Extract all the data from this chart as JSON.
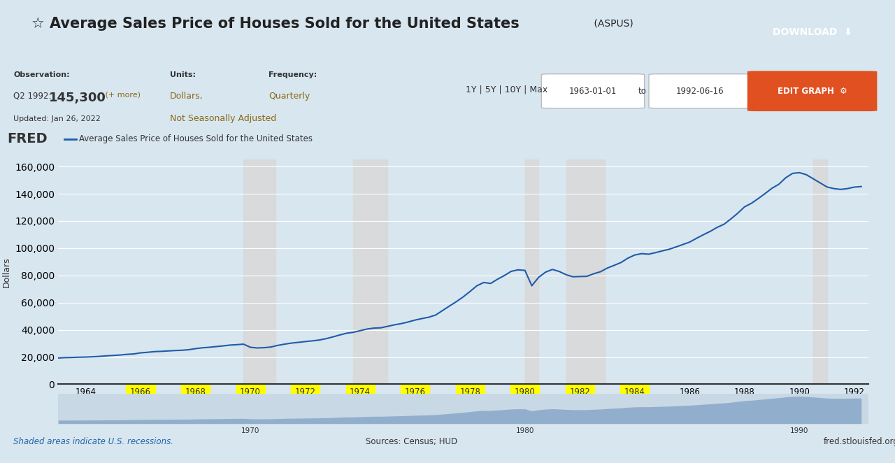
{
  "title": "Average Sales Price of Houses Sold for the United States",
  "title_suffix": "(ASPUS)",
  "line_label": "Average Sales Price of Houses Sold for the United States",
  "ylabel": "Dollars",
  "xlabel": "",
  "line_color": "#1f5ca8",
  "line_width": 1.5,
  "background_color": "#d8e6f0",
  "chart_bg_color": "#d8e6f0",
  "header_bg_color": "#eeeedd",
  "recession_color": "#d8d8d8",
  "recession_alpha": 0.85,
  "ylim": [
    0,
    165000
  ],
  "yticks": [
    0,
    20000,
    40000,
    60000,
    80000,
    100000,
    120000,
    140000,
    160000
  ],
  "xlim_start": 1963.0,
  "xlim_end": 1992.5,
  "xticks": [
    1964,
    1966,
    1968,
    1970,
    1972,
    1974,
    1976,
    1978,
    1980,
    1982,
    1984,
    1986,
    1988,
    1990,
    1992
  ],
  "highlighted_xticks": [
    1966,
    1968,
    1970,
    1972,
    1974,
    1976,
    1978,
    1980,
    1982,
    1984
  ],
  "highlight_color": "#ffff00",
  "recession_bands": [
    [
      1969.75,
      1970.916
    ],
    [
      1973.75,
      1975.0
    ],
    [
      1980.0,
      1980.5
    ],
    [
      1981.5,
      1982.916
    ],
    [
      1990.5,
      1991.0
    ]
  ],
  "obs_label": "Observation:",
  "obs_value": "Q2 1992: 145,300",
  "obs_more": "(+ more)",
  "obs_updated": "Updated: Jan 26, 2022",
  "units_label": "Units:",
  "units_value": "Dollars,",
  "units_adj": "Not Seasonally Adjusted",
  "freq_label": "Frequency:",
  "freq_value": "Quarterly",
  "date_from": "1963-01-01",
  "date_to": "1992-06-16",
  "source_text": "Sources: Census; HUD",
  "fred_url": "fred.stlouisfed.org",
  "shaded_note": "Shaded areas indicate U.S. recessions.",
  "data_x": [
    1963.0,
    1963.25,
    1963.5,
    1963.75,
    1964.0,
    1964.25,
    1964.5,
    1964.75,
    1965.0,
    1965.25,
    1965.5,
    1965.75,
    1966.0,
    1966.25,
    1966.5,
    1966.75,
    1967.0,
    1967.25,
    1967.5,
    1967.75,
    1968.0,
    1968.25,
    1968.5,
    1968.75,
    1969.0,
    1969.25,
    1969.5,
    1969.75,
    1970.0,
    1970.25,
    1970.5,
    1970.75,
    1971.0,
    1971.25,
    1971.5,
    1971.75,
    1972.0,
    1972.25,
    1972.5,
    1972.75,
    1973.0,
    1973.25,
    1973.5,
    1973.75,
    1974.0,
    1974.25,
    1974.5,
    1974.75,
    1975.0,
    1975.25,
    1975.5,
    1975.75,
    1976.0,
    1976.25,
    1976.5,
    1976.75,
    1977.0,
    1977.25,
    1977.5,
    1977.75,
    1978.0,
    1978.25,
    1978.5,
    1978.75,
    1979.0,
    1979.25,
    1979.5,
    1979.75,
    1980.0,
    1980.25,
    1980.5,
    1980.75,
    1981.0,
    1981.25,
    1981.5,
    1981.75,
    1982.0,
    1982.25,
    1982.5,
    1982.75,
    1983.0,
    1983.25,
    1983.5,
    1983.75,
    1984.0,
    1984.25,
    1984.5,
    1984.75,
    1985.0,
    1985.25,
    1985.5,
    1985.75,
    1986.0,
    1986.25,
    1986.5,
    1986.75,
    1987.0,
    1987.25,
    1987.5,
    1987.75,
    1988.0,
    1988.25,
    1988.5,
    1988.75,
    1989.0,
    1989.25,
    1989.5,
    1989.75,
    1990.0,
    1990.25,
    1990.5,
    1990.75,
    1991.0,
    1991.25,
    1991.5,
    1991.75,
    1992.0,
    1992.25
  ],
  "data_y": [
    19300,
    19600,
    19700,
    19900,
    20000,
    20200,
    20500,
    20900,
    21200,
    21500,
    22000,
    22300,
    23100,
    23500,
    24000,
    24200,
    24500,
    24800,
    25000,
    25400,
    26200,
    26800,
    27200,
    27700,
    28200,
    28800,
    29100,
    29500,
    27200,
    26700,
    26900,
    27400,
    28600,
    29500,
    30300,
    30800,
    31400,
    31900,
    32500,
    33500,
    34800,
    36200,
    37500,
    38200,
    39400,
    40600,
    41300,
    41500,
    42600,
    43700,
    44600,
    45800,
    47200,
    48300,
    49300,
    50900,
    54200,
    57500,
    60700,
    64200,
    68200,
    72400,
    74800,
    74100,
    77200,
    79900,
    83000,
    84100,
    83700,
    72400,
    78600,
    82400,
    84400,
    82900,
    80500,
    79000,
    79200,
    79300,
    81200,
    82700,
    85400,
    87400,
    89500,
    92700,
    95000,
    96000,
    95600,
    96700,
    98000,
    99200,
    100900,
    102700,
    104500,
    107300,
    109900,
    112400,
    115300,
    117600,
    121500,
    125700,
    130400,
    133000,
    136500,
    140200,
    144100,
    147000,
    151800,
    155000,
    155500,
    154000,
    151000,
    148000,
    145000,
    143800,
    143200,
    143800,
    144900,
    145300
  ]
}
